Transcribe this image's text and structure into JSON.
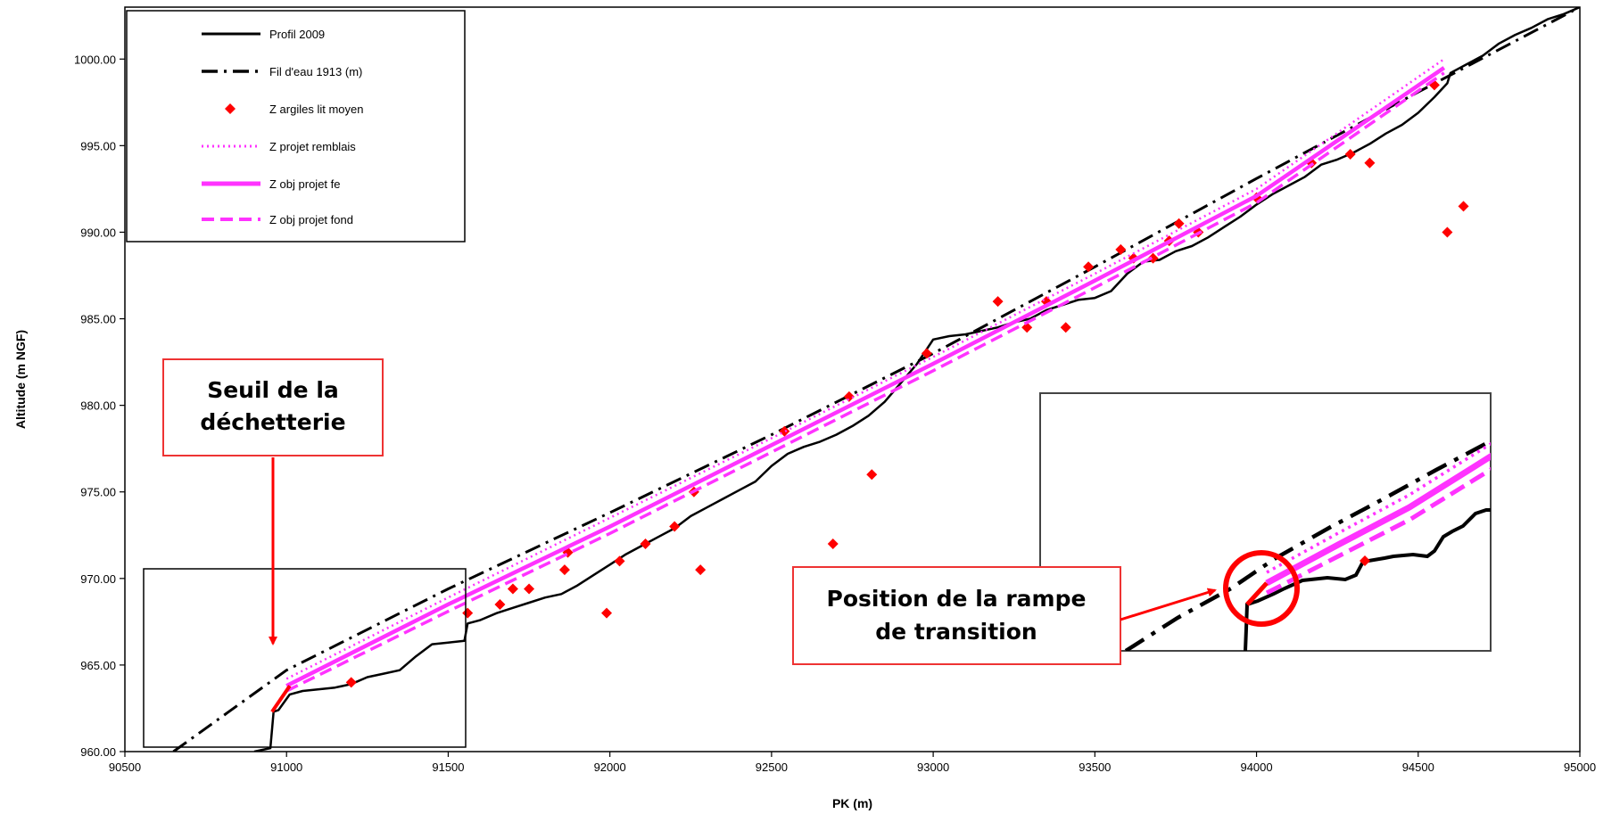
{
  "chart_data": {
    "type": "line",
    "xlabel": "PK (m)",
    "ylabel": "Altitude (m NGF)",
    "xlim": [
      90500,
      95000
    ],
    "ylim": [
      960,
      1003
    ],
    "x_ticks": [
      90500,
      91000,
      91500,
      92000,
      92500,
      93000,
      93500,
      94000,
      94500,
      95000
    ],
    "x_tick_labels": [
      "90500",
      "91000",
      "91500",
      "92000",
      "92500",
      "93000",
      "93500",
      "94000",
      "94500",
      "95000"
    ],
    "y_ticks": [
      960,
      965,
      970,
      975,
      980,
      985,
      990,
      995,
      1000
    ],
    "y_tick_labels": [
      "960.00",
      "965.00",
      "970.00",
      "975.00",
      "980.00",
      "985.00",
      "990.00",
      "995.00",
      "1000.00"
    ],
    "grid": false,
    "legend_position": "top-left",
    "series": [
      {
        "name": "Profil 2009",
        "style": "solid",
        "color": "#000000",
        "x": [
          90900,
          90950,
          90960,
          90975,
          91010,
          91050,
          91100,
          91150,
          91200,
          91250,
          91300,
          91350,
          91400,
          91450,
          91500,
          91550,
          91560,
          91600,
          91650,
          91700,
          91750,
          91800,
          91850,
          91900,
          91950,
          92000,
          92050,
          92100,
          92150,
          92200,
          92250,
          92300,
          92350,
          92400,
          92450,
          92500,
          92550,
          92600,
          92650,
          92700,
          92750,
          92800,
          92850,
          92900,
          92950,
          93000,
          93050,
          93100,
          93150,
          93200,
          93250,
          93300,
          93350,
          93400,
          93450,
          93500,
          93550,
          93600,
          93650,
          93700,
          93750,
          93800,
          93850,
          93900,
          93950,
          94000,
          94050,
          94100,
          94150,
          94200,
          94250,
          94300,
          94350,
          94400,
          94450,
          94500,
          94550,
          94590,
          94600,
          94650,
          94700,
          94750,
          94800,
          94850,
          94900,
          94950,
          95000
        ],
        "y": [
          960.0,
          960.2,
          962.3,
          962.4,
          963.3,
          963.5,
          963.6,
          963.7,
          963.9,
          964.3,
          964.5,
          964.7,
          965.5,
          966.2,
          966.3,
          966.4,
          967.4,
          967.6,
          968.0,
          968.3,
          968.6,
          968.9,
          969.1,
          969.6,
          970.2,
          970.8,
          971.4,
          971.9,
          972.4,
          972.9,
          973.6,
          974.1,
          974.6,
          975.1,
          975.6,
          976.5,
          977.2,
          977.6,
          977.9,
          978.3,
          978.8,
          979.4,
          980.2,
          981.3,
          982.4,
          983.8,
          984.0,
          984.1,
          984.3,
          984.5,
          984.8,
          985.0,
          985.5,
          985.8,
          986.1,
          986.2,
          986.6,
          987.6,
          988.3,
          988.4,
          988.9,
          989.2,
          989.7,
          990.3,
          990.9,
          991.6,
          992.2,
          992.7,
          993.2,
          993.9,
          994.2,
          994.6,
          995.1,
          995.7,
          996.2,
          996.9,
          997.8,
          998.6,
          999.2,
          999.7,
          1000.2,
          1000.9,
          1001.4,
          1001.8,
          1002.3,
          1002.6,
          1003.0
        ]
      },
      {
        "name": "Fil d'eau 1913 (m)",
        "style": "dashdot",
        "color": "#000000",
        "x": [
          90650,
          91000,
          91500,
          92000,
          92500,
          93000,
          93500,
          94000,
          94500,
          95000
        ],
        "y": [
          960.0,
          964.7,
          969.4,
          973.8,
          978.3,
          983.0,
          988.0,
          993.1,
          998.1,
          1003.0
        ]
      },
      {
        "name": "Z argiles lit moyen",
        "style": "marker",
        "color": "#ff0000",
        "x": [
          91200,
          91560,
          91660,
          91700,
          91750,
          91860,
          91870,
          91990,
          92030,
          92110,
          92200,
          92260,
          92280,
          92540,
          92690,
          92740,
          92810,
          92980,
          93200,
          93290,
          93350,
          93410,
          93480,
          93580,
          93620,
          93680,
          93730,
          93760,
          93820,
          94000,
          94170,
          94290,
          94350,
          94550,
          94590,
          94640
        ],
        "y": [
          964.0,
          968.0,
          968.5,
          969.4,
          969.4,
          970.5,
          971.5,
          968.0,
          971.0,
          972.0,
          973.0,
          975.0,
          970.5,
          978.5,
          972.0,
          980.5,
          976.0,
          983.0,
          986.0,
          984.5,
          986.0,
          984.5,
          988.0,
          989.0,
          988.5,
          988.5,
          989.5,
          990.5,
          990.0,
          992.0,
          994.0,
          994.5,
          994.0,
          998.5,
          990.0,
          991.5
        ]
      },
      {
        "name": "Z projet remblais",
        "style": "dotted",
        "color": "#ff33ff",
        "x": [
          91000,
          91500,
          92000,
          92500,
          93000,
          93500,
          94000,
          94580
        ],
        "y": [
          964.2,
          968.9,
          973.5,
          978.1,
          982.8,
          987.6,
          992.5,
          1000.0
        ]
      },
      {
        "name": "Z obj projet fe",
        "style": "solid-thick",
        "color": "#ff33ff",
        "x": [
          91000,
          91500,
          92000,
          92500,
          93000,
          93500,
          94000,
          94580
        ],
        "y": [
          963.8,
          968.5,
          973.0,
          977.7,
          982.4,
          987.2,
          992.1,
          999.5
        ]
      },
      {
        "name": "Z obj projet fond",
        "style": "dashed",
        "color": "#ff33ff",
        "x": [
          91000,
          91500,
          92000,
          92500,
          93000,
          93500,
          94000,
          94580
        ],
        "y": [
          963.5,
          968.1,
          972.6,
          977.3,
          982.0,
          986.8,
          991.7,
          999.2
        ]
      }
    ],
    "annotations": [
      {
        "text_lines": [
          "Seuil de la",
          "déchetterie"
        ]
      },
      {
        "text_lines": [
          "Position de la rampe",
          "de transition"
        ]
      }
    ]
  },
  "colors": {
    "highlight": "#ff0000",
    "projet": "#ff33ff",
    "profil": "#000000"
  }
}
